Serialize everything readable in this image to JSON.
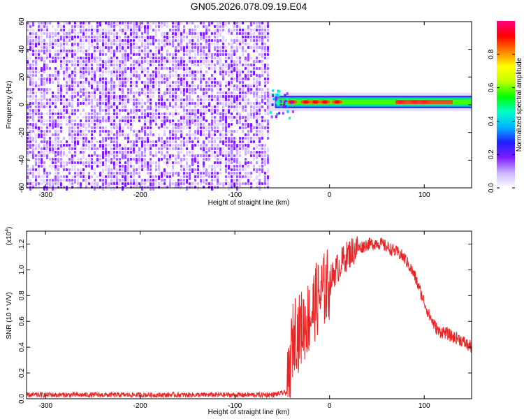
{
  "title": "GN05.2026.078.09.19.E04",
  "chart_data": [
    {
      "type": "heatmap",
      "title": "GN05.2026.078.09.19.E04",
      "xlabel": "Height of straight line (km)",
      "ylabel": "Frequency (Hz)",
      "xlim": [
        -320,
        150
      ],
      "ylim": [
        -60,
        60
      ],
      "xticks": [
        -300,
        -200,
        -100,
        0,
        100
      ],
      "yticks": [
        -60,
        -40,
        -20,
        0,
        20,
        40,
        60
      ],
      "noise_region_x": [
        -320,
        -65
      ],
      "signal_band": {
        "x": [
          -65,
          150
        ],
        "freq_center": 2,
        "freq_halfwidth": 3
      },
      "colorbar": {
        "label": "Normalized spectral amplitude",
        "range": [
          0.0,
          1.0
        ],
        "ticks": [
          "0.0",
          "0.2",
          "0.4",
          "0.6",
          "0.8"
        ],
        "colors": [
          "#ffffff",
          "#c9b4ff",
          "#7d1cff",
          "#1f1fff",
          "#00b4ff",
          "#00ffc8",
          "#00ff00",
          "#bfff00",
          "#ffff00",
          "#ff8000",
          "#ff0000",
          "#ff0080"
        ]
      }
    },
    {
      "type": "line",
      "xlabel": "Height of straight line (km)",
      "ylabel": "SNR (10 * V/V)",
      "scale_label": "(x10",
      "scale_exp": "4",
      "xlim": [
        -320,
        150
      ],
      "ylim": [
        0,
        1.3
      ],
      "xticks": [
        -300,
        -200,
        -100,
        0,
        100
      ],
      "yticks": [
        "0.0",
        "0.2",
        "0.4",
        "0.6",
        "0.8",
        "1.0",
        "1.2"
      ],
      "color": "#ee2222",
      "series": [
        {
          "x": [
            -320,
            -300,
            -250,
            -200,
            -150,
            -100,
            -60,
            -45,
            -42,
            -40,
            -36,
            -33,
            -30,
            -25,
            -20,
            -15,
            -10,
            -5,
            0,
            5,
            10,
            15,
            20,
            25,
            30,
            35,
            40,
            45,
            50,
            55,
            60,
            65,
            70,
            75,
            80,
            85,
            90,
            95,
            100,
            105,
            110,
            115,
            120,
            125,
            130,
            135,
            140,
            145,
            150
          ],
          "values": [
            0.03,
            0.03,
            0.03,
            0.03,
            0.03,
            0.03,
            0.03,
            0.05,
            0.15,
            0.4,
            0.55,
            0.5,
            0.55,
            0.6,
            0.65,
            0.75,
            0.8,
            0.85,
            0.9,
            0.98,
            1.03,
            1.08,
            1.12,
            1.15,
            1.17,
            1.18,
            1.2,
            1.2,
            1.21,
            1.2,
            1.18,
            1.16,
            1.14,
            1.12,
            1.08,
            1.02,
            0.95,
            0.85,
            0.75,
            0.65,
            0.58,
            0.52,
            0.52,
            0.5,
            0.48,
            0.47,
            0.45,
            0.42,
            0.4
          ]
        }
      ]
    }
  ]
}
